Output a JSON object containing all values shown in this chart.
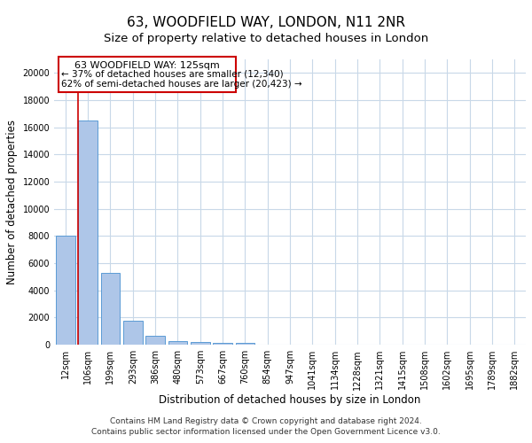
{
  "title": "63, WOODFIELD WAY, LONDON, N11 2NR",
  "subtitle": "Size of property relative to detached houses in London",
  "xlabel": "Distribution of detached houses by size in London",
  "ylabel": "Number of detached properties",
  "categories": [
    "12sqm",
    "106sqm",
    "199sqm",
    "293sqm",
    "386sqm",
    "480sqm",
    "573sqm",
    "667sqm",
    "760sqm",
    "854sqm",
    "947sqm",
    "1041sqm",
    "1134sqm",
    "1228sqm",
    "1321sqm",
    "1415sqm",
    "1508sqm",
    "1602sqm",
    "1695sqm",
    "1789sqm",
    "1882sqm"
  ],
  "values": [
    8050,
    16500,
    5300,
    1800,
    650,
    280,
    200,
    150,
    150,
    0,
    0,
    0,
    0,
    0,
    0,
    0,
    0,
    0,
    0,
    0,
    0
  ],
  "bar_color": "#aec6e8",
  "bar_edge_color": "#5b9bd5",
  "marker_label": "63 WOODFIELD WAY: 125sqm",
  "marker_line_color": "#cc0000",
  "annotation_line1": "← 37% of detached houses are smaller (12,340)",
  "annotation_line2": "62% of semi-detached houses are larger (20,423) →",
  "box_color": "#cc0000",
  "footer_line1": "Contains HM Land Registry data © Crown copyright and database right 2024.",
  "footer_line2": "Contains public sector information licensed under the Open Government Licence v3.0.",
  "ylim": [
    0,
    21000
  ],
  "yticks": [
    0,
    2000,
    4000,
    6000,
    8000,
    10000,
    12000,
    14000,
    16000,
    18000,
    20000
  ],
  "background_color": "#ffffff",
  "grid_color": "#c8d8e8",
  "title_fontsize": 11,
  "subtitle_fontsize": 9.5,
  "axis_label_fontsize": 8.5,
  "tick_fontsize": 7,
  "footer_fontsize": 6.5
}
